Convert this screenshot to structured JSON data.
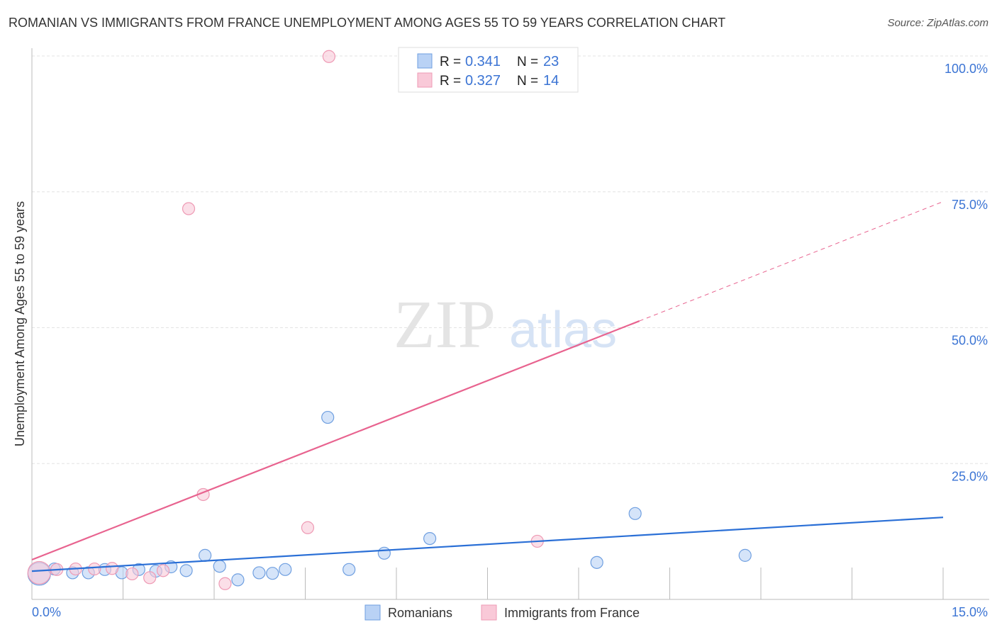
{
  "chart_data": {
    "type": "scatter",
    "title": "ROMANIAN VS IMMIGRANTS FROM FRANCE UNEMPLOYMENT AMONG AGES 55 TO 59 YEARS CORRELATION CHART",
    "source": "Source: ZipAtlas.com",
    "xlabel": "",
    "ylabel": "Unemployment Among Ages 55 to 59 years",
    "xlim": [
      0,
      15
    ],
    "ylim": [
      0,
      100
    ],
    "x_tick_labels": [
      "0.0%",
      "15.0%"
    ],
    "y_ticks": [
      25,
      50,
      75,
      100
    ],
    "y_tick_labels": [
      "25.0%",
      "50.0%",
      "75.0%",
      "100.0%"
    ],
    "grid": true,
    "legend_position": "top-center",
    "watermark": "ZIPatlas",
    "series": [
      {
        "name": "Romanians",
        "color": "#6f9fe0",
        "fill": "#b9d2f5",
        "line_color": "#2a6fd6",
        "R": "0.341",
        "N": "23",
        "trend": {
          "x": [
            0,
            15
          ],
          "y": [
            5.2,
            15.1
          ]
        },
        "points": [
          [
            0.12,
            4.7
          ],
          [
            0.37,
            5.6
          ],
          [
            0.67,
            4.9
          ],
          [
            0.93,
            4.9
          ],
          [
            1.2,
            5.5
          ],
          [
            1.48,
            4.9
          ],
          [
            1.76,
            5.5
          ],
          [
            2.04,
            5.2
          ],
          [
            2.29,
            6.0
          ],
          [
            2.54,
            5.3
          ],
          [
            2.85,
            8.1
          ],
          [
            3.09,
            6.1
          ],
          [
            3.39,
            3.6
          ],
          [
            3.74,
            4.9
          ],
          [
            3.96,
            4.8
          ],
          [
            4.17,
            5.5
          ],
          [
            4.87,
            33.5
          ],
          [
            5.22,
            5.5
          ],
          [
            5.8,
            8.5
          ],
          [
            6.55,
            11.2
          ],
          [
            9.3,
            6.8
          ],
          [
            9.93,
            15.8
          ],
          [
            11.74,
            8.1
          ]
        ]
      },
      {
        "name": "Immigrants from France",
        "color": "#ee9ab4",
        "fill": "#f9c9d8",
        "line_color": "#e8638f",
        "R": "0.327",
        "N": "14",
        "trend": {
          "x": [
            0,
            15
          ],
          "y": [
            7.3,
            73.2
          ],
          "solid_until": 10.0
        },
        "points": [
          [
            0.12,
            4.9
          ],
          [
            0.41,
            5.5
          ],
          [
            0.72,
            5.6
          ],
          [
            1.03,
            5.6
          ],
          [
            1.32,
            5.7
          ],
          [
            1.65,
            4.7
          ],
          [
            1.94,
            4.0
          ],
          [
            2.16,
            5.3
          ],
          [
            2.58,
            71.9
          ],
          [
            2.82,
            19.3
          ],
          [
            3.18,
            2.9
          ],
          [
            4.54,
            13.2
          ],
          [
            4.89,
            99.9
          ],
          [
            8.32,
            10.7
          ]
        ]
      }
    ],
    "legend_labels": {
      "r": "R =",
      "n": "N ="
    }
  }
}
